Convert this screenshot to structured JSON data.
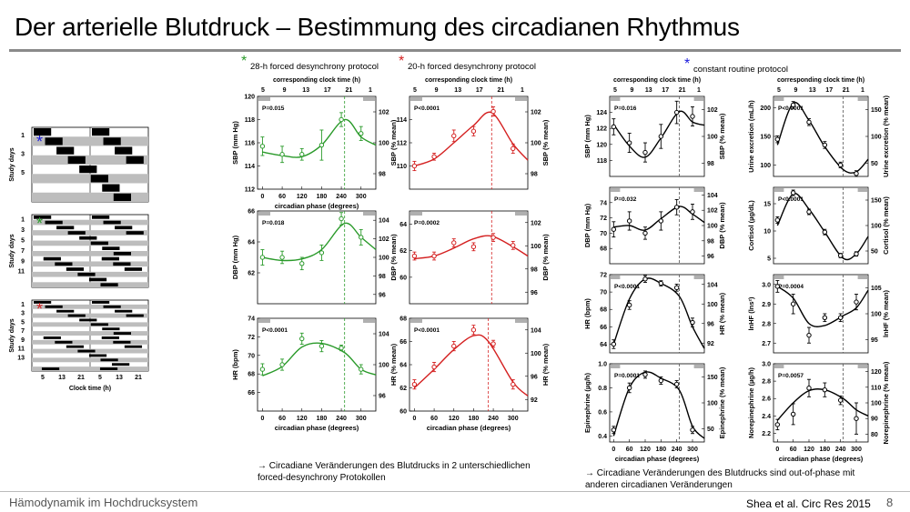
{
  "slide": {
    "title": "Der arterielle Blutdruck – Bestimmung des circadianen Rhythmus",
    "footer_left": "Hämodynamik im Hochdrucksystem",
    "citation": "Shea et al. Circ Res 2015",
    "page": "8"
  },
  "protocols": {
    "p28": {
      "marker": "*",
      "label": "28-h forced desynchrony protocol",
      "color": "#2a9a2a"
    },
    "p20": {
      "marker": "*",
      "label": "20-h forced desynchrony protocol",
      "color": "#d42020"
    },
    "cr": {
      "marker": "*",
      "label": "constant routine protocol",
      "color": "#1a1adc"
    }
  },
  "schedule": {
    "ylabel": "Study days",
    "xlabel": "Clock time (h)",
    "xticks": [
      "5",
      "13",
      "21",
      "5",
      "13",
      "21"
    ],
    "panel1_days": [
      "1",
      "3",
      "5"
    ],
    "panel2_days": [
      "1",
      "3",
      "5",
      "7",
      "9",
      "11"
    ],
    "panel3_days": [
      "1",
      "3",
      "5",
      "7",
      "9",
      "11",
      "13"
    ]
  },
  "axes_text": {
    "top_title": "corresponding clock time (h)",
    "top_ticks": [
      "5",
      "9",
      "13",
      "17",
      "21",
      "1"
    ],
    "x_title": "circadian phase (degrees)",
    "x_ticks": [
      "0",
      "60",
      "120",
      "180",
      "240",
      "300"
    ]
  },
  "captions": {
    "c1_arrow": "→",
    "c1": "Circadiane Veränderungen des Blutdrucks in 2 unterschiedlichen forced-desynchrony Protokollen",
    "c2_arrow": "→",
    "c2": "Circadiane Veränderungen des Blutdrucks sind out-of-phase mit anderen circadianen Veränderungen"
  },
  "chart_data": [
    {
      "id": "fd28_sbp",
      "type": "line",
      "color": "#2a9a2a",
      "pvalue": "P=0.015",
      "ylabel": "SBP (mm Hg)",
      "y2label": "SBP (% mean)",
      "ylim": [
        112,
        120
      ],
      "yticks": [
        "112",
        "114",
        "116",
        "118",
        "120"
      ],
      "y2ticks": [
        "98",
        "100",
        "102"
      ],
      "x": [
        0,
        60,
        120,
        180,
        240,
        300
      ],
      "y": [
        115.7,
        115.0,
        115.0,
        115.8,
        118.0,
        116.8
      ],
      "err": [
        0.8,
        0.7,
        0.5,
        1.3,
        0.6,
        0.6
      ],
      "dashed_x": 250,
      "curve": [
        [
          0,
          115.2
        ],
        [
          60,
          114.9
        ],
        [
          120,
          114.8
        ],
        [
          180,
          115.8
        ],
        [
          250,
          118.0
        ],
        [
          300,
          116.5
        ],
        [
          345,
          115.8
        ]
      ]
    },
    {
      "id": "fd20_sbp",
      "type": "line",
      "color": "#d42020",
      "pvalue": "P<0.0001",
      "ylabel": "",
      "y2label": "SBP (% mean)",
      "ylim": [
        108,
        116
      ],
      "yticks": [
        "110",
        "112",
        "114"
      ],
      "y2ticks": [
        "98",
        "100",
        "102"
      ],
      "x": [
        0,
        60,
        120,
        180,
        240,
        300
      ],
      "y": [
        110.0,
        110.8,
        112.6,
        113.0,
        114.7,
        111.5
      ],
      "err": [
        0.4,
        0.3,
        0.5,
        0.4,
        0.4,
        0.4
      ],
      "dashed_x": 235,
      "curve": [
        [
          0,
          110.0
        ],
        [
          60,
          110.6
        ],
        [
          120,
          112.0
        ],
        [
          180,
          113.5
        ],
        [
          235,
          114.6
        ],
        [
          300,
          111.9
        ],
        [
          345,
          110.5
        ]
      ]
    },
    {
      "id": "fd28_dbp",
      "type": "line",
      "color": "#2a9a2a",
      "pvalue": "P=0.018",
      "ylabel": "DBP (mm Hg)",
      "y2label": "DBP (% mean)",
      "ylim": [
        60,
        66
      ],
      "yticks": [
        "62",
        "64",
        "66"
      ],
      "y2ticks": [
        "96",
        "98",
        "100",
        "102",
        "104"
      ],
      "x": [
        0,
        60,
        120,
        180,
        240,
        300
      ],
      "y": [
        63.0,
        63.0,
        62.6,
        63.3,
        65.5,
        64.3
      ],
      "err": [
        0.5,
        0.4,
        0.4,
        0.5,
        0.4,
        0.5
      ],
      "dashed_x": 250,
      "curve": [
        [
          0,
          63.0
        ],
        [
          60,
          62.8
        ],
        [
          120,
          62.9
        ],
        [
          180,
          63.5
        ],
        [
          250,
          65.2
        ],
        [
          300,
          64.3
        ],
        [
          345,
          63.5
        ]
      ]
    },
    {
      "id": "fd20_dbp",
      "type": "line",
      "color": "#d42020",
      "pvalue": "P=0.0002",
      "ylabel": "",
      "y2label": "DBP (% mean)",
      "ylim": [
        58,
        65
      ],
      "yticks": [
        "60",
        "62",
        "64"
      ],
      "y2ticks": [
        "96",
        "98",
        "100",
        "102"
      ],
      "x": [
        0,
        60,
        120,
        180,
        240,
        300
      ],
      "y": [
        61.6,
        61.6,
        62.6,
        62.3,
        63.0,
        62.4
      ],
      "err": [
        0.3,
        0.3,
        0.3,
        0.3,
        0.3,
        0.3
      ],
      "dashed_x": 235,
      "curve": [
        [
          0,
          61.4
        ],
        [
          60,
          61.6
        ],
        [
          120,
          62.2
        ],
        [
          180,
          62.9
        ],
        [
          235,
          63.1
        ],
        [
          300,
          62.3
        ],
        [
          345,
          61.6
        ]
      ]
    },
    {
      "id": "fd28_hr",
      "type": "line",
      "color": "#2a9a2a",
      "pvalue": "P<0.0001",
      "ylabel": "HR (bpm)",
      "y2label": "HR (% mean)",
      "ylim": [
        64,
        74
      ],
      "yticks": [
        "66",
        "68",
        "70",
        "72",
        "74"
      ],
      "y2ticks": [
        "96",
        "100",
        "104"
      ],
      "x": [
        0,
        60,
        120,
        180,
        240,
        300
      ],
      "y": [
        68.5,
        69.0,
        71.8,
        71.0,
        70.8,
        68.5
      ],
      "err": [
        0.6,
        0.6,
        0.6,
        0.6,
        0.3,
        0.5
      ],
      "dashed_x": 250,
      "curve": [
        [
          0,
          67.8
        ],
        [
          60,
          68.8
        ],
        [
          120,
          70.9
        ],
        [
          180,
          71.3
        ],
        [
          250,
          70.3
        ],
        [
          300,
          68.5
        ],
        [
          345,
          67.9
        ]
      ]
    },
    {
      "id": "fd20_hr",
      "type": "line",
      "color": "#d42020",
      "pvalue": "P<0.0001",
      "ylabel": "",
      "y2label": "HR (% mean)",
      "ylim": [
        60,
        68
      ],
      "yticks": [
        "60",
        "62",
        "64",
        "66",
        "68"
      ],
      "y2ticks": [
        "92",
        "96",
        "100",
        "104"
      ],
      "x": [
        0,
        60,
        120,
        180,
        240,
        300
      ],
      "y": [
        62.3,
        63.8,
        65.6,
        67.0,
        65.8,
        62.3
      ],
      "err": [
        0.4,
        0.4,
        0.4,
        0.4,
        0.3,
        0.4
      ],
      "dashed_x": 225,
      "curve": [
        [
          0,
          62.0
        ],
        [
          60,
          63.6
        ],
        [
          120,
          65.3
        ],
        [
          180,
          66.5
        ],
        [
          225,
          66.0
        ],
        [
          300,
          62.5
        ],
        [
          345,
          61.3
        ]
      ]
    },
    {
      "id": "cr_sbp",
      "type": "line",
      "color": "#000000",
      "pvalue": "P=0.016",
      "ylabel": "SBP (mm Hg)",
      "y2label": "SBP (% mean)",
      "ylim": [
        116,
        126
      ],
      "yticks": [
        "118",
        "120",
        "122",
        "124"
      ],
      "y2ticks": [
        "98",
        "100",
        "102"
      ],
      "x": [
        0,
        60,
        120,
        180,
        240,
        300
      ],
      "y": [
        122.2,
        120.2,
        119.0,
        121.0,
        124.0,
        123.5
      ],
      "err": [
        1.0,
        1.2,
        1.2,
        1.5,
        1.4,
        1.2
      ],
      "dashed_x": 250,
      "curve": [
        [
          0,
          122.5
        ],
        [
          60,
          119.8
        ],
        [
          120,
          118.4
        ],
        [
          180,
          120.8
        ],
        [
          250,
          124.1
        ],
        [
          300,
          122.8
        ],
        [
          345,
          122.4
        ]
      ]
    },
    {
      "id": "cr_urine",
      "type": "line",
      "color": "#000000",
      "pvalue": "P<0.0001",
      "ylabel": "Urine excretion (mL/h)",
      "y2label": "Urine excretion (% mean)",
      "ylim": [
        80,
        220
      ],
      "yticks": [
        "100",
        "150",
        "200"
      ],
      "y2ticks": [
        "50",
        "100",
        "150"
      ],
      "x": [
        0,
        60,
        120,
        180,
        240,
        300
      ],
      "y": [
        145,
        205,
        175,
        135,
        100,
        85
      ],
      "err": [
        6,
        6,
        6,
        6,
        5,
        5
      ],
      "dashed_x": 250,
      "curve": [
        [
          0,
          135
        ],
        [
          60,
          208
        ],
        [
          120,
          178
        ],
        [
          180,
          132
        ],
        [
          250,
          92
        ],
        [
          300,
          88
        ],
        [
          345,
          110
        ]
      ]
    },
    {
      "id": "cr_dbp",
      "type": "line",
      "color": "#000000",
      "pvalue": "P=0.032",
      "ylabel": "DBP (mm Hg)",
      "y2label": "DBP (% mean)",
      "ylim": [
        66,
        76
      ],
      "yticks": [
        "68",
        "70",
        "72",
        "74"
      ],
      "y2ticks": [
        "96",
        "98",
        "100",
        "102",
        "104"
      ],
      "x": [
        0,
        60,
        120,
        180,
        240,
        300
      ],
      "y": [
        70.5,
        71.6,
        70.0,
        71.6,
        73.4,
        72.8
      ],
      "err": [
        1.0,
        1.2,
        0.8,
        1.2,
        1.0,
        1.0
      ],
      "dashed_x": 250,
      "curve": [
        [
          0,
          70.8
        ],
        [
          60,
          71.0
        ],
        [
          120,
          70.4
        ],
        [
          180,
          71.9
        ],
        [
          250,
          73.5
        ],
        [
          300,
          72.5
        ],
        [
          345,
          71.4
        ]
      ]
    },
    {
      "id": "cr_cortisol",
      "type": "line",
      "color": "#000000",
      "pvalue": "P<0.0001",
      "ylabel": "Cortisol (µg/dL)",
      "y2label": "Cortisol (% mean)",
      "ylim": [
        4,
        18
      ],
      "yticks": [
        "5",
        "10",
        "15"
      ],
      "y2ticks": [
        "50",
        "100",
        "150"
      ],
      "x": [
        0,
        60,
        120,
        180,
        240,
        300
      ],
      "y": [
        12.0,
        17.0,
        13.5,
        9.8,
        5.5,
        5.8
      ],
      "err": [
        0.6,
        0.5,
        0.5,
        0.5,
        0.4,
        0.4
      ],
      "dashed_x": 250,
      "curve": [
        [
          0,
          11.0
        ],
        [
          60,
          16.8
        ],
        [
          120,
          14.0
        ],
        [
          180,
          9.8
        ],
        [
          250,
          5.0
        ],
        [
          300,
          5.8
        ],
        [
          345,
          9.0
        ]
      ]
    },
    {
      "id": "cr_hr",
      "type": "line",
      "color": "#000000",
      "pvalue": "P<0.0001",
      "ylabel": "HR (bpm)",
      "y2label": "HR (% mean)",
      "ylim": [
        63,
        72
      ],
      "yticks": [
        "64",
        "66",
        "68",
        "70",
        "72"
      ],
      "y2ticks": [
        "92",
        "96",
        "100",
        "104"
      ],
      "x": [
        0,
        60,
        120,
        180,
        240,
        300
      ],
      "y": [
        64.0,
        68.5,
        71.5,
        71.0,
        70.5,
        66.5
      ],
      "err": [
        0.5,
        0.5,
        0.4,
        0.3,
        0.4,
        0.5
      ],
      "dashed_x": 250,
      "curve": [
        [
          0,
          64.0
        ],
        [
          60,
          69.2
        ],
        [
          120,
          71.5
        ],
        [
          180,
          71.0
        ],
        [
          250,
          69.5
        ],
        [
          300,
          66.0
        ],
        [
          345,
          63.5
        ]
      ]
    },
    {
      "id": "cr_lnhf",
      "type": "line",
      "color": "#000000",
      "pvalue": "P=0.0004",
      "ylabel": "lnHF (lns²)",
      "y2label": "lnHF (% mean)",
      "ylim": [
        2.65,
        3.05
      ],
      "yticks": [
        "2.7",
        "2.8",
        "2.9",
        "3.0"
      ],
      "y2ticks": [
        "95",
        "100",
        "105"
      ],
      "x": [
        0,
        60,
        120,
        180,
        240,
        300
      ],
      "y": [
        2.99,
        2.9,
        2.74,
        2.83,
        2.83,
        2.91
      ],
      "err": [
        0.03,
        0.05,
        0.04,
        0.02,
        0.02,
        0.04
      ],
      "dashed_x": 250,
      "curve": [
        [
          0,
          2.99
        ],
        [
          60,
          2.93
        ],
        [
          120,
          2.8
        ],
        [
          180,
          2.79
        ],
        [
          250,
          2.84
        ],
        [
          300,
          2.88
        ],
        [
          345,
          2.97
        ]
      ]
    },
    {
      "id": "cr_epi",
      "type": "line",
      "color": "#000000",
      "pvalue": "P=0.0001",
      "ylabel": "Epinephrine (µg/h)",
      "y2label": "Epinephrine (% mean)",
      "ylim": [
        0.35,
        1.0
      ],
      "yticks": [
        "0.4",
        "0.6",
        "0.8",
        "1.0"
      ],
      "y2ticks": [
        "50",
        "100",
        "150"
      ],
      "x": [
        0,
        60,
        120,
        180,
        240,
        300
      ],
      "y": [
        0.45,
        0.8,
        0.91,
        0.86,
        0.83,
        0.45
      ],
      "err": [
        0.03,
        0.04,
        0.03,
        0.03,
        0.03,
        0.03
      ],
      "dashed_x": 250,
      "curve": [
        [
          0,
          0.4
        ],
        [
          60,
          0.8
        ],
        [
          120,
          0.93
        ],
        [
          180,
          0.88
        ],
        [
          250,
          0.78
        ],
        [
          300,
          0.48
        ],
        [
          345,
          0.38
        ]
      ]
    },
    {
      "id": "cr_norepi",
      "type": "line",
      "color": "#000000",
      "pvalue": "P=0.0057",
      "ylabel": "Norepinephrine (µg/h)",
      "y2label": "Norepinephrine (% mean)",
      "ylim": [
        2.1,
        3.0
      ],
      "yticks": [
        "2.2",
        "2.4",
        "2.6",
        "2.8",
        "3.0"
      ],
      "y2ticks": [
        "80",
        "90",
        "100",
        "110",
        "120"
      ],
      "x": [
        0,
        60,
        120,
        180,
        240,
        300
      ],
      "y": [
        2.3,
        2.42,
        2.72,
        2.7,
        2.58,
        2.37
      ],
      "err": [
        0.06,
        0.12,
        0.1,
        0.08,
        0.05,
        0.18
      ],
      "dashed_x": 250,
      "curve": [
        [
          0,
          2.35
        ],
        [
          60,
          2.55
        ],
        [
          120,
          2.69
        ],
        [
          180,
          2.7
        ],
        [
          250,
          2.6
        ],
        [
          300,
          2.47
        ],
        [
          345,
          2.4
        ]
      ]
    }
  ]
}
